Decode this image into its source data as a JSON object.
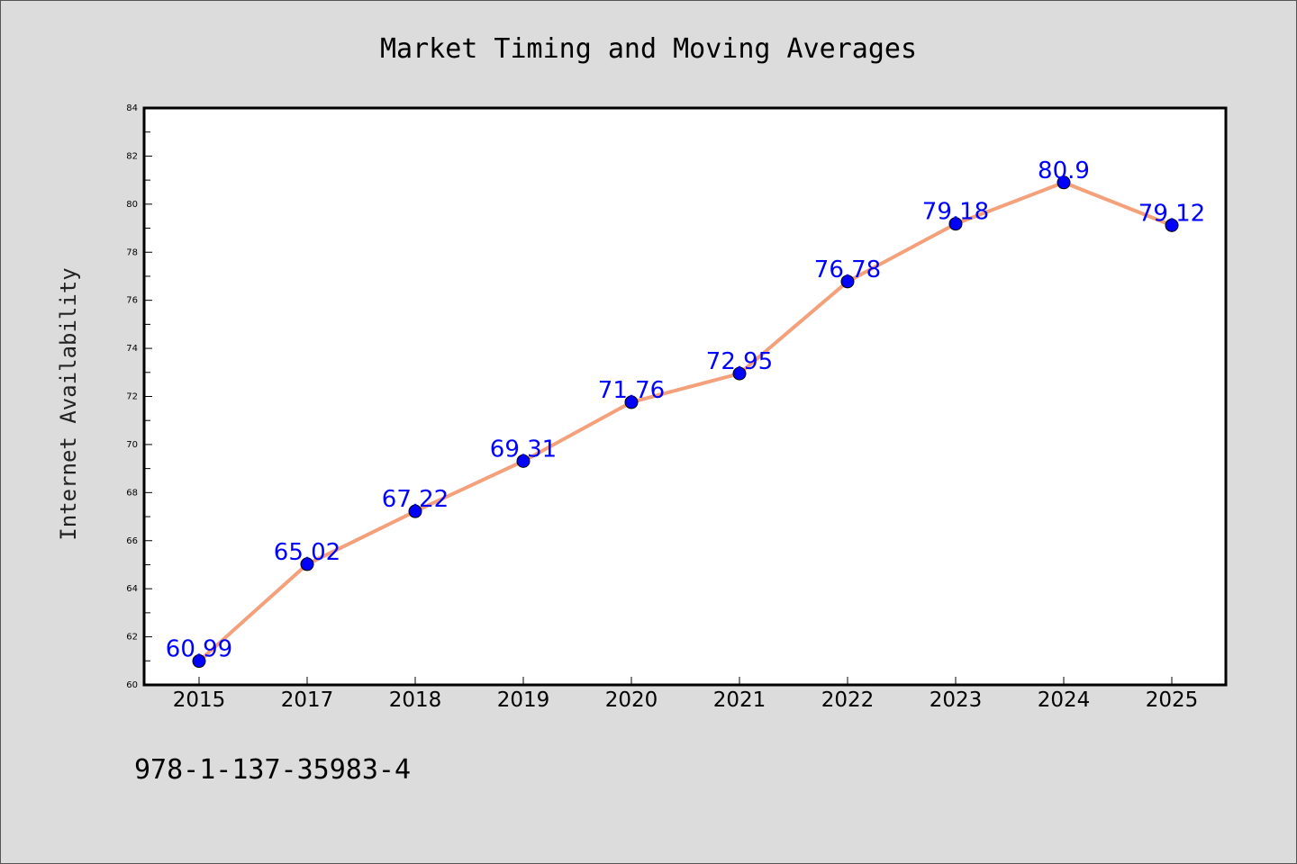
{
  "chart_data": {
    "type": "line",
    "title": "Market Timing and Moving Averages",
    "xlabel": "",
    "ylabel": "Internet Availability",
    "categories": [
      "2015",
      "2017",
      "2018",
      "2019",
      "2020",
      "2021",
      "2022",
      "2023",
      "2024",
      "2025"
    ],
    "series": [
      {
        "values": [
          60.99,
          65.02,
          67.22,
          69.31,
          71.76,
          72.95,
          76.78,
          79.18,
          80.9,
          79.12
        ],
        "data_labels": [
          "60.99",
          "65.02",
          "67.22",
          "69.31",
          "71.76",
          "72.95",
          "76.78",
          "79.18",
          "80.9",
          "79.12"
        ],
        "line_color": "#f4a07a",
        "marker_color": "#0000ff"
      }
    ],
    "ylim": [
      60,
      84
    ],
    "yticks": [
      "60",
      "62",
      "64",
      "66",
      "68",
      "70",
      "72",
      "74",
      "76",
      "78",
      "80",
      "82",
      "84"
    ],
    "grid": false,
    "legend": "none"
  },
  "footer": {
    "text": "978-1-137-35983-4"
  },
  "colors": {
    "background": "#dcdcdc",
    "plot_background": "#ffffff",
    "line": "#f4a07a",
    "marker": "#0000ff",
    "data_label": "#0000ff"
  }
}
